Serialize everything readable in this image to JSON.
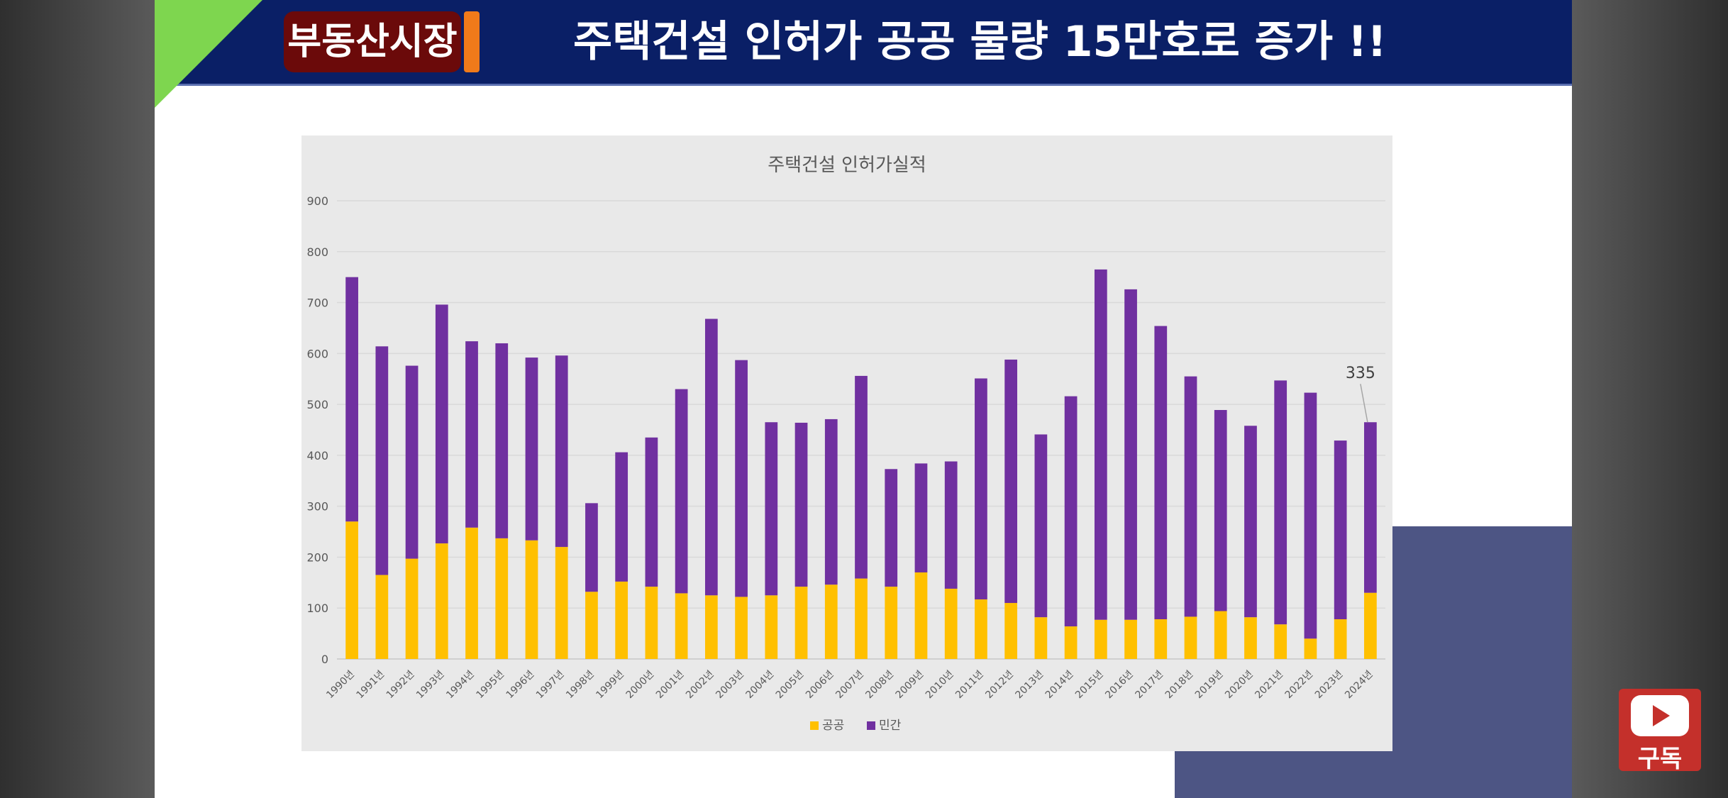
{
  "banner": {
    "badge": "부동산시장",
    "headline": "주택건설 인허가  공공 물량 15만호로 증가 !!"
  },
  "subscribe": {
    "label": "구독"
  },
  "chart_data": {
    "type": "bar",
    "stacked": true,
    "title": "주택건설 인허가실적",
    "ylim": [
      0,
      900
    ],
    "yticks": [
      0,
      100,
      200,
      300,
      400,
      500,
      600,
      700,
      800,
      900
    ],
    "grid": true,
    "legend_position": "bottom",
    "categories": [
      "1990년",
      "1991년",
      "1992년",
      "1993년",
      "1994년",
      "1995년",
      "1996년",
      "1997년",
      "1998년",
      "1999년",
      "2000년",
      "2001년",
      "2002년",
      "2003년",
      "2004년",
      "2005년",
      "2006년",
      "2007년",
      "2008년",
      "2009년",
      "2010년",
      "2011년",
      "2012년",
      "2013년",
      "2014년",
      "2015년",
      "2016년",
      "2017년",
      "2018년",
      "2019년",
      "2020년",
      "2021년",
      "2022년",
      "2023년",
      "2024년"
    ],
    "series": [
      {
        "name": "공공",
        "color": "#ffc000",
        "values": [
          270,
          165,
          197,
          227,
          258,
          237,
          233,
          220,
          132,
          152,
          142,
          129,
          125,
          122,
          125,
          142,
          146,
          158,
          142,
          170,
          138,
          117,
          110,
          82,
          64,
          77,
          77,
          78,
          83,
          94,
          82,
          68,
          40,
          78,
          130
        ]
      },
      {
        "name": "민간",
        "color": "#7030a0",
        "values": [
          480,
          449,
          379,
          469,
          366,
          383,
          359,
          376,
          174,
          254,
          293,
          401,
          543,
          465,
          340,
          322,
          325,
          398,
          231,
          214,
          250,
          434,
          478,
          359,
          452,
          688,
          649,
          576,
          472,
          395,
          376,
          479,
          483,
          351,
          335
        ]
      }
    ],
    "annotations": [
      {
        "text": "335",
        "category": "2024년",
        "series": "민간"
      }
    ]
  }
}
